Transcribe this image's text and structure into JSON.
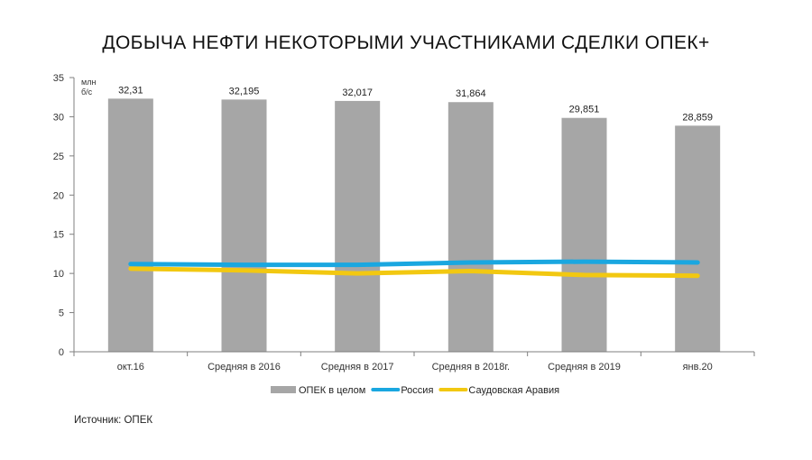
{
  "chart_data": {
    "type": "bar",
    "title": "ДОБЫЧА НЕФТИ НЕКОТОРЫМИ УЧАСТНИКАМИ СДЕЛКИ ОПЕК+",
    "ylabel": "млн б/с",
    "categories": [
      "окт.16",
      "Средняя в 2016",
      "Средняя в 2017",
      "Средняя в 2018г.",
      "Средняя в 2019",
      "янв.20"
    ],
    "ylim": [
      0,
      35
    ],
    "yticks": [
      0,
      5,
      10,
      15,
      20,
      25,
      30,
      35
    ],
    "grid": false,
    "legend_position": "bottom",
    "series": [
      {
        "name": "ОПЕК в целом",
        "kind": "bar",
        "color": "#a6a6a6",
        "values": [
          32.31,
          32.195,
          32.017,
          31.864,
          29.851,
          28.859
        ],
        "labels": [
          "32,31",
          "32,195",
          "32,017",
          "31,864",
          "29,851",
          "28,859"
        ]
      },
      {
        "name": "Россия",
        "kind": "line",
        "color": "#1aa7e0",
        "values": [
          11.2,
          11.1,
          11.1,
          11.4,
          11.5,
          11.4
        ]
      },
      {
        "name": "Саудовская Аравия",
        "kind": "line",
        "color": "#f2c811",
        "values": [
          10.6,
          10.4,
          10.0,
          10.3,
          9.8,
          9.7
        ]
      }
    ]
  },
  "source": "Источник: ОПЕК"
}
